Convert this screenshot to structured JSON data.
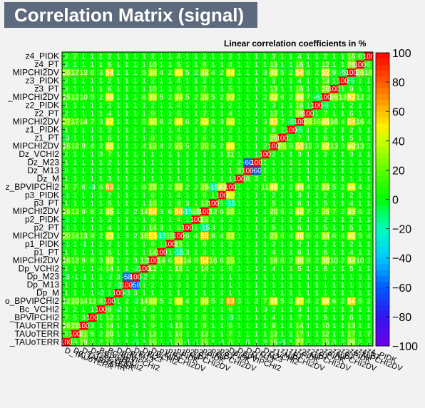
{
  "chart_data": {
    "type": "heatmap",
    "title": "Correlation Matrix (signal)",
    "subtitle": "Linear correlation coefficients in %",
    "variables": [
      "D_TAUoTERR",
      "Dp_TAUoTERR",
      "Ds_TAUoTERR",
      "Ds_BPVIPCHI2",
      "Bc_VCHI2",
      "Bc_BPVIPCHI2",
      "Dp_M",
      "Dp_M13",
      "Dp_M23",
      "Dp_VCHI2",
      "Dp_MIPCHI2DV",
      "p1_PT",
      "p1_PIDK",
      "p1_MIPCHI2DV",
      "p2_PT",
      "p2_PIDK",
      "p2_MIPCHI2DV",
      "p3_PT",
      "p3_PIDK",
      "Dz_BPVIPCHI2",
      "Dz_M",
      "Dz_M13",
      "Dz_M23",
      "Dz_VCHI2",
      "z1_MIPCHI2DV",
      "z1_PT",
      "z1_PIDK",
      "z2_MIPCHI2DV",
      "z2_PT",
      "z2_PIDK",
      "z3_MIPCHI2DV",
      "z3_PT",
      "z3_PIDK",
      "z4_MIPCHI2DV",
      "z4_PT",
      "z4_PIDK"
    ],
    "y_tick_labels": [
      "_TAUoTERR",
      "TAUoTERR",
      "TAUoTERR",
      "_BPVIPCHI2",
      "Bc_VCHI2",
      "o_BPVIPCHI2",
      "Dp_M",
      "Dp_M13",
      "Dp_M23",
      "Dp_VCHI2",
      "MIPCHI2DV",
      "p1_PT",
      "p1_PIDK",
      "MIPCHI2DV",
      "p2_PT",
      "p2_PIDK",
      "MIPCHI2DV",
      "p3_PT",
      "p3_PIDK",
      "z_BPVIPCHI2",
      "Dz_M",
      "Dz_M13",
      "Dz_M23",
      "Dz_VCHI2",
      "MIPCHI2DV",
      "z1_PT",
      "z1_PIDK",
      "MIPCHI2DV",
      "z2_PT",
      "z2_PIDK",
      "_MIPCHI2DV",
      "z3_PT",
      "z3_PIDK",
      "MIPCHI2DV",
      "z4_PT",
      "z4_PIDK"
    ],
    "zlim": [
      -100,
      100
    ],
    "colorbar_ticks": [
      "100",
      "80",
      "60",
      "40",
      "20",
      "0",
      "−20",
      "−40",
      "−60",
      "−80",
      "−100"
    ],
    "matrix": [
      [
        100,
        9,
        19,
        7,
        2,
        12,
        1,
        1,
        -3,
        1,
        16,
        1,
        -1,
        20,
        -1,
        -1,
        16,
        1,
        -1,
        8,
        1,
        0,
        1,
        2,
        16,
        -3,
        1,
        27,
        2,
        1,
        15,
        3,
        2,
        26,
        2,
        2
      ],
      [
        9,
        100,
        21,
        5,
        2,
        20,
        1,
        1,
        -1,
        1,
        12,
        1,
        1,
        14,
        1,
        1,
        12,
        1,
        1,
        7,
        1,
        1,
        1,
        1,
        12,
        1,
        1,
        17,
        1,
        1,
        12,
        1,
        1,
        17,
        1,
        7
      ],
      [
        19,
        21,
        100,
        3,
        1,
        14,
        1,
        1,
        -1,
        1,
        9,
        1,
        -1,
        13,
        1,
        1,
        9,
        1,
        1,
        6,
        1,
        1,
        1,
        1,
        9,
        1,
        1,
        14,
        1,
        1,
        10,
        1,
        1,
        13,
        1,
        1
      ],
      [
        7,
        5,
        3,
        100,
        1,
        12,
        1,
        1,
        1,
        1,
        8,
        1,
        1,
        9,
        1,
        1,
        8,
        1,
        1,
        -3,
        1,
        1,
        1,
        1,
        4,
        1,
        1,
        7,
        1,
        1,
        5,
        1,
        1,
        6,
        1,
        1
      ],
      [
        2,
        2,
        1,
        1,
        100,
        8,
        -2,
        1,
        1,
        4,
        3,
        1,
        1,
        2,
        1,
        1,
        2,
        1,
        1,
        6,
        1,
        1,
        1,
        3,
        2,
        1,
        1,
        3,
        1,
        1,
        2,
        1,
        1,
        3,
        1,
        1
      ],
      [
        12,
        20,
        14,
        12,
        8,
        100,
        1,
        2,
        -2,
        14,
        33,
        5,
        2,
        43,
        4,
        2,
        35,
        5,
        2,
        63,
        3,
        1,
        2,
        7,
        45,
        5,
        2,
        47,
        4,
        2,
        48,
        6,
        2,
        54,
        5,
        2
      ],
      [
        1,
        1,
        1,
        1,
        -2,
        1,
        100,
        -3,
        3,
        1,
        1,
        1,
        1,
        1,
        1,
        1,
        1,
        1,
        1,
        1,
        1,
        1,
        1,
        1,
        1,
        1,
        1,
        1,
        1,
        1,
        1,
        1,
        1,
        1,
        1,
        1
      ],
      [
        1,
        1,
        1,
        1,
        1,
        2,
        -3,
        100,
        -58,
        1,
        2,
        1,
        1,
        3,
        1,
        1,
        2,
        1,
        1,
        1,
        1,
        1,
        1,
        1,
        1,
        1,
        1,
        1,
        1,
        1,
        1,
        1,
        1,
        1,
        1,
        1
      ],
      [
        -3,
        -1,
        -1,
        1,
        1,
        -2,
        3,
        -58,
        100,
        -2,
        3,
        1,
        1,
        2,
        1,
        1,
        2,
        1,
        1,
        1,
        1,
        1,
        1,
        1,
        1,
        1,
        1,
        1,
        1,
        1,
        1,
        1,
        1,
        1,
        1,
        1
      ],
      [
        1,
        1,
        1,
        1,
        4,
        14,
        1,
        1,
        -2,
        100,
        12,
        1,
        1,
        18,
        1,
        1,
        14,
        1,
        1,
        6,
        1,
        1,
        1,
        1,
        4,
        1,
        1,
        5,
        1,
        1,
        6,
        1,
        1,
        5,
        1,
        1
      ],
      [
        16,
        12,
        9,
        8,
        3,
        33,
        1,
        2,
        3,
        12,
        100,
        14,
        6,
        53,
        14,
        6,
        54,
        16,
        6,
        25,
        1,
        1,
        1,
        1,
        18,
        8,
        2,
        36,
        9,
        2,
        36,
        10,
        2,
        34,
        10,
        2
      ],
      [
        1,
        1,
        1,
        1,
        1,
        5,
        1,
        1,
        1,
        1,
        14,
        100,
        1,
        -15,
        3,
        1,
        3,
        1,
        1,
        2,
        1,
        1,
        1,
        1,
        4,
        1,
        1,
        6,
        1,
        1,
        5,
        1,
        1,
        4,
        1,
        1
      ],
      [
        -1,
        1,
        -1,
        1,
        1,
        2,
        1,
        1,
        1,
        1,
        6,
        1,
        100,
        15,
        1,
        1,
        6,
        1,
        1,
        2,
        1,
        1,
        1,
        1,
        2,
        1,
        1,
        2,
        1,
        1,
        2,
        1,
        1,
        2,
        1,
        1
      ],
      [
        20,
        14,
        13,
        9,
        2,
        43,
        1,
        3,
        2,
        18,
        53,
        -15,
        15,
        100,
        6,
        4,
        56,
        8,
        4,
        32,
        1,
        1,
        1,
        1,
        25,
        6,
        4,
        46,
        6,
        4,
        34,
        6,
        4,
        46,
        5,
        4
      ],
      [
        -1,
        1,
        1,
        1,
        1,
        4,
        1,
        1,
        1,
        1,
        14,
        3,
        1,
        6,
        100,
        1,
        -15,
        3,
        1,
        2,
        1,
        1,
        1,
        1,
        5,
        1,
        1,
        6,
        1,
        1,
        5,
        1,
        1,
        5,
        1,
        1
      ],
      [
        -1,
        1,
        1,
        1,
        1,
        2,
        1,
        1,
        1,
        1,
        6,
        1,
        1,
        4,
        1,
        100,
        18,
        1,
        1,
        2,
        1,
        1,
        1,
        1,
        2,
        1,
        1,
        2,
        1,
        1,
        2,
        1,
        1,
        2,
        1,
        1
      ],
      [
        16,
        12,
        9,
        8,
        2,
        35,
        1,
        2,
        2,
        14,
        54,
        3,
        6,
        56,
        -15,
        18,
        100,
        12,
        6,
        25,
        1,
        1,
        1,
        1,
        20,
        6,
        2,
        42,
        7,
        2,
        26,
        7,
        2,
        33,
        6,
        2
      ],
      [
        1,
        1,
        1,
        1,
        1,
        5,
        1,
        1,
        1,
        1,
        16,
        1,
        1,
        8,
        3,
        1,
        12,
        100,
        1,
        -15,
        1,
        1,
        1,
        1,
        5,
        1,
        1,
        6,
        1,
        1,
        5,
        1,
        1,
        4,
        1,
        1
      ],
      [
        -1,
        1,
        1,
        1,
        1,
        2,
        1,
        1,
        1,
        1,
        6,
        1,
        1,
        4,
        1,
        1,
        6,
        1,
        100,
        40,
        1,
        1,
        1,
        1,
        2,
        1,
        1,
        3,
        1,
        1,
        2,
        1,
        1,
        2,
        1,
        1
      ],
      [
        8,
        7,
        6,
        -3,
        6,
        63,
        1,
        1,
        1,
        6,
        25,
        2,
        2,
        32,
        2,
        2,
        25,
        -15,
        40,
        100,
        1,
        1,
        2,
        11,
        48,
        3,
        2,
        40,
        4,
        2,
        33,
        5,
        2,
        44,
        4,
        2
      ],
      [
        1,
        1,
        1,
        1,
        1,
        3,
        1,
        1,
        1,
        1,
        1,
        1,
        1,
        1,
        1,
        1,
        1,
        1,
        1,
        1,
        100,
        8,
        2,
        1,
        1,
        1,
        1,
        1,
        1,
        1,
        1,
        1,
        1,
        1,
        1,
        1
      ],
      [
        0,
        1,
        1,
        1,
        1,
        1,
        1,
        1,
        1,
        1,
        1,
        1,
        1,
        1,
        1,
        1,
        1,
        1,
        1,
        1,
        8,
        100,
        -60,
        1,
        1,
        1,
        1,
        1,
        1,
        1,
        1,
        1,
        1,
        1,
        1,
        1
      ],
      [
        1,
        1,
        1,
        1,
        1,
        2,
        1,
        1,
        1,
        1,
        1,
        1,
        1,
        1,
        1,
        1,
        1,
        1,
        1,
        2,
        2,
        -60,
        100,
        1,
        1,
        1,
        1,
        1,
        1,
        1,
        1,
        1,
        1,
        1,
        1,
        1
      ],
      [
        2,
        1,
        1,
        1,
        3,
        7,
        1,
        1,
        1,
        1,
        1,
        1,
        1,
        1,
        1,
        1,
        1,
        1,
        1,
        11,
        1,
        1,
        1,
        100,
        2,
        1,
        1,
        3,
        1,
        1,
        2,
        1,
        1,
        3,
        1,
        1
      ],
      [
        16,
        12,
        9,
        4,
        2,
        45,
        1,
        1,
        1,
        4,
        18,
        4,
        2,
        25,
        5,
        2,
        20,
        5,
        2,
        48,
        1,
        1,
        1,
        2,
        100,
        26,
        8,
        53,
        12,
        3,
        42,
        13,
        3,
        40,
        13,
        3
      ],
      [
        -3,
        1,
        1,
        1,
        1,
        5,
        1,
        1,
        1,
        1,
        8,
        1,
        1,
        6,
        1,
        1,
        6,
        1,
        1,
        3,
        1,
        1,
        1,
        1,
        26,
        100,
        2,
        7,
        1,
        1,
        6,
        1,
        1,
        5,
        1,
        1
      ],
      [
        1,
        1,
        1,
        1,
        1,
        2,
        1,
        1,
        1,
        1,
        2,
        1,
        1,
        4,
        1,
        1,
        2,
        1,
        1,
        2,
        1,
        1,
        1,
        1,
        8,
        2,
        100,
        -5,
        1,
        1,
        2,
        1,
        1,
        2,
        1,
        1
      ],
      [
        27,
        17,
        14,
        7,
        3,
        47,
        1,
        1,
        1,
        5,
        36,
        6,
        2,
        46,
        6,
        2,
        42,
        6,
        3,
        40,
        1,
        1,
        1,
        3,
        53,
        7,
        -5,
        100,
        28,
        16,
        46,
        16,
        4,
        54,
        16,
        4
      ],
      [
        2,
        1,
        1,
        1,
        1,
        4,
        1,
        1,
        1,
        1,
        9,
        1,
        1,
        6,
        1,
        1,
        7,
        1,
        1,
        4,
        1,
        1,
        1,
        1,
        12,
        1,
        1,
        28,
        100,
        1,
        7,
        1,
        1,
        6,
        1,
        1
      ],
      [
        1,
        1,
        1,
        1,
        1,
        2,
        1,
        1,
        1,
        1,
        2,
        1,
        1,
        4,
        1,
        1,
        2,
        1,
        1,
        2,
        1,
        1,
        1,
        1,
        3,
        1,
        1,
        16,
        1,
        100,
        -6,
        1,
        1,
        2,
        1,
        1
      ],
      [
        15,
        12,
        10,
        5,
        2,
        48,
        1,
        1,
        1,
        6,
        36,
        5,
        2,
        34,
        5,
        2,
        26,
        5,
        2,
        33,
        1,
        1,
        1,
        2,
        42,
        6,
        2,
        46,
        7,
        -6,
        100,
        26,
        13,
        52,
        12,
        2
      ],
      [
        3,
        1,
        1,
        1,
        1,
        6,
        1,
        1,
        1,
        1,
        10,
        1,
        1,
        6,
        1,
        1,
        7,
        1,
        1,
        5,
        1,
        1,
        1,
        1,
        13,
        1,
        1,
        16,
        1,
        1,
        26,
        100,
        1,
        9,
        1,
        1
      ],
      [
        2,
        1,
        1,
        1,
        1,
        2,
        1,
        1,
        1,
        1,
        2,
        1,
        1,
        4,
        1,
        1,
        2,
        1,
        1,
        2,
        1,
        1,
        1,
        1,
        3,
        1,
        1,
        4,
        1,
        1,
        13,
        1,
        100,
        -5,
        1,
        1
      ],
      [
        26,
        17,
        13,
        6,
        3,
        54,
        1,
        1,
        1,
        5,
        34,
        4,
        2,
        46,
        5,
        2,
        33,
        4,
        2,
        44,
        1,
        1,
        1,
        3,
        40,
        5,
        2,
        54,
        6,
        2,
        52,
        9,
        -5,
        100,
        26,
        16
      ],
      [
        2,
        1,
        1,
        1,
        1,
        5,
        1,
        1,
        1,
        1,
        10,
        1,
        1,
        5,
        1,
        1,
        6,
        1,
        1,
        4,
        1,
        1,
        1,
        1,
        13,
        1,
        1,
        16,
        1,
        1,
        12,
        1,
        1,
        26,
        100,
        6
      ],
      [
        2,
        7,
        1,
        1,
        1,
        2,
        1,
        1,
        1,
        1,
        2,
        1,
        1,
        4,
        1,
        1,
        2,
        1,
        1,
        2,
        1,
        1,
        1,
        1,
        3,
        1,
        1,
        4,
        1,
        1,
        2,
        1,
        1,
        16,
        6,
        100
      ]
    ],
    "grid": true,
    "colorbar": "right"
  }
}
